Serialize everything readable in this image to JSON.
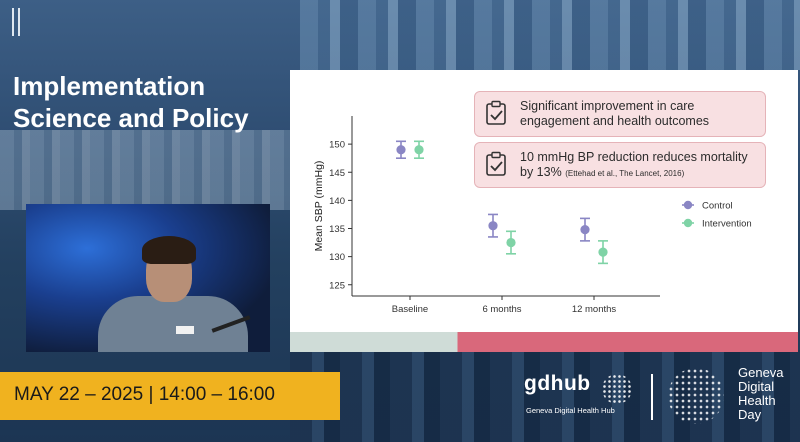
{
  "presentation": {
    "title_lines": [
      "Implementation",
      "Science and Policy"
    ],
    "event_datetime": "MAY 22 – 2025 |  14:00 – 16:00"
  },
  "slide": {
    "callouts": [
      {
        "text": "Significant improvement in care engagement and health outcomes",
        "citation": ""
      },
      {
        "text": "10 mmHg BP reduction reduces mortality by 13%",
        "citation": "(Ettehad et al., The Lancet, 2016)"
      }
    ]
  },
  "chart_data": {
    "type": "scatter",
    "ylabel": "Mean SBP (mmHg)",
    "xlabel": "",
    "categories": [
      "Baseline",
      "6 months",
      "12 months"
    ],
    "ylim": [
      123,
      155
    ],
    "yticks": [
      125,
      130,
      135,
      140,
      145,
      150
    ],
    "legend": {
      "placement": "right"
    },
    "series": [
      {
        "name": "Control",
        "color": "#8a86c4",
        "values": [
          149.0,
          135.5,
          134.8
        ],
        "error_low": [
          147.5,
          133.5,
          132.8
        ],
        "error_high": [
          150.5,
          137.5,
          136.8
        ]
      },
      {
        "name": "Intervention",
        "color": "#7fd3a6",
        "values": [
          149.0,
          132.5,
          130.8
        ],
        "error_low": [
          147.5,
          130.5,
          128.8
        ],
        "error_high": [
          150.5,
          134.5,
          132.8
        ]
      }
    ]
  },
  "branding": {
    "gdhub": {
      "name": "gdhub",
      "tagline": "Geneva Digital Health Hub"
    },
    "event_logo_lines": [
      "Geneva",
      "Digital",
      "Health",
      "Day"
    ]
  },
  "colors": {
    "accent_yellow": "#f0b21f",
    "slide_accent": "#d9687b"
  }
}
